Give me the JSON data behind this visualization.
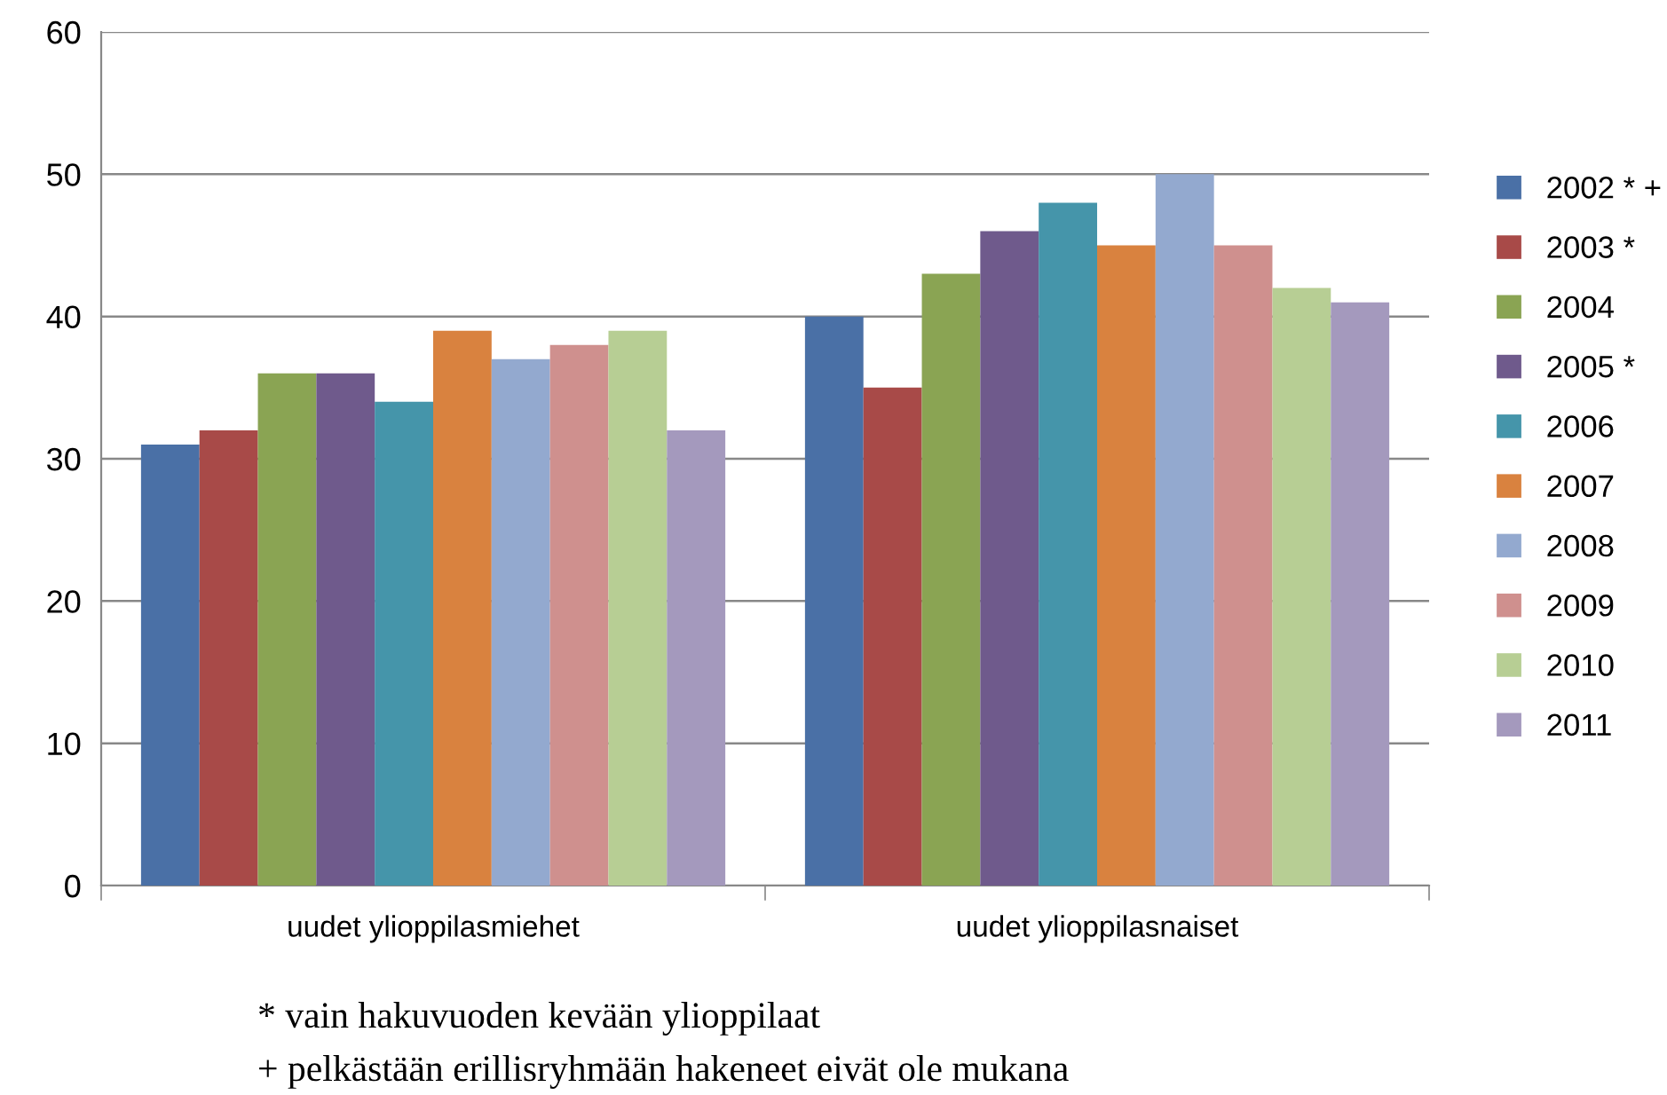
{
  "chart_data": {
    "type": "bar",
    "categories": [
      "uudet ylioppilasmiehet",
      "uudet ylioppilasnaiset"
    ],
    "series": [
      {
        "name": "2002 * +",
        "color": "#4a70a6",
        "values": [
          31,
          40
        ]
      },
      {
        "name": "2003 *",
        "color": "#a84a48",
        "values": [
          32,
          35
        ]
      },
      {
        "name": "2004",
        "color": "#8aa453",
        "values": [
          36,
          43
        ]
      },
      {
        "name": "2005 *",
        "color": "#6f5a8c",
        "values": [
          36,
          46
        ]
      },
      {
        "name": "2006",
        "color": "#4595aa",
        "values": [
          34,
          48
        ]
      },
      {
        "name": "2007",
        "color": "#d9823f",
        "values": [
          39,
          45
        ]
      },
      {
        "name": "2008",
        "color": "#93a9cf",
        "values": [
          37,
          50
        ]
      },
      {
        "name": "2009",
        "color": "#cf908e",
        "values": [
          38,
          45
        ]
      },
      {
        "name": "2010",
        "color": "#b7ce94",
        "values": [
          39,
          42
        ]
      },
      {
        "name": "2011",
        "color": "#a499bd",
        "values": [
          32,
          41
        ]
      }
    ],
    "ylim": [
      0,
      60
    ],
    "yticks": [
      0,
      10,
      20,
      30,
      40,
      50,
      60
    ],
    "grid": "y",
    "legend": "right",
    "annotations": [
      "* vain hakuvuoden kevään ylioppilaat",
      "+ pelkästään erillisryhmään hakeneet eivät ole mukana"
    ]
  }
}
